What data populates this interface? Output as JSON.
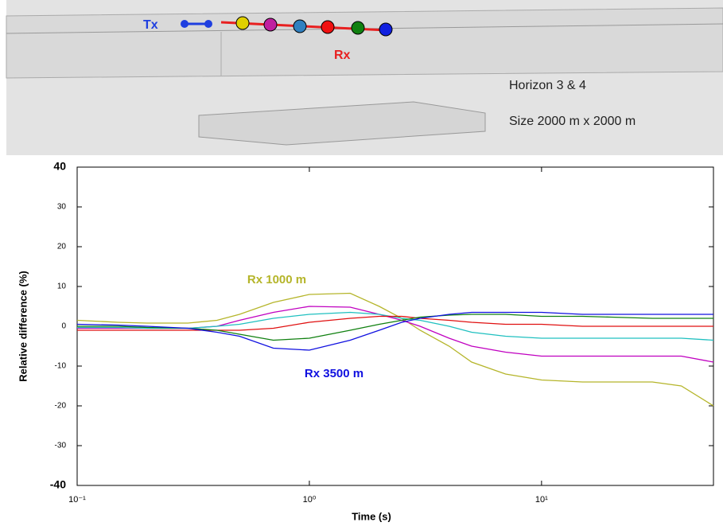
{
  "figure": {
    "labels": {
      "tx": "Tx",
      "rx": "Rx",
      "horizon": "Horizon 3 & 4",
      "size": "Size 2000 m x 2000 m"
    }
  },
  "chart_data": {
    "type": "line",
    "x_label": "Time (s)",
    "y_label": "Relative difference (%)",
    "x": [
      0.1,
      0.15,
      0.2,
      0.3,
      0.4,
      0.5,
      0.7,
      1,
      1.5,
      2,
      2.5,
      3,
      4,
      5,
      7,
      10,
      15,
      20,
      30,
      40,
      55
    ],
    "series": [
      {
        "color": "#b5b52a",
        "values": [
          1.5,
          1,
          0.8,
          0.8,
          1.5,
          3,
          6,
          8,
          8.3,
          5,
          2,
          -1,
          -5,
          -9,
          -12,
          -13.5,
          -14,
          -14,
          -14,
          -15,
          -20
        ]
      },
      {
        "color": "#c000c0",
        "values": [
          -0.5,
          -0.5,
          -0.5,
          -0.5,
          0,
          1.5,
          3.5,
          5,
          4.8,
          3,
          1.5,
          0,
          -3,
          -5,
          -6.5,
          -7.5,
          -7.5,
          -7.5,
          -7.5,
          -7.5,
          -9
        ]
      },
      {
        "color": "#20c0c0",
        "values": [
          -0.3,
          -0.3,
          -0.5,
          -0.5,
          0,
          0.5,
          2,
          3,
          3.5,
          3,
          2,
          1.5,
          0,
          -1.5,
          -2.5,
          -3,
          -3,
          -3,
          -3,
          -3,
          -3.5
        ]
      },
      {
        "color": "#e01010",
        "values": [
          -1,
          -1,
          -1,
          -1,
          -1,
          -1,
          -0.5,
          1,
          2,
          2.5,
          2.5,
          2,
          1.5,
          1,
          0.5,
          0.5,
          0,
          0,
          0,
          0,
          0
        ]
      },
      {
        "color": "#108010",
        "values": [
          0,
          0,
          -0.3,
          -0.5,
          -1,
          -2,
          -3.5,
          -3,
          -1,
          0.5,
          1.5,
          2.3,
          2.8,
          3,
          3,
          2.5,
          2.5,
          2.3,
          2,
          2,
          2
        ]
      },
      {
        "color": "#1010e0",
        "values": [
          0.5,
          0.3,
          0,
          -0.5,
          -1.5,
          -2.5,
          -5.5,
          -6,
          -3.5,
          -1,
          1,
          2,
          3,
          3.5,
          3.5,
          3.5,
          3,
          3,
          3,
          3,
          3
        ]
      }
    ],
    "annotations": [
      {
        "text": "Rx 1000 m",
        "color": "#b5b52a"
      },
      {
        "text": "Rx 3500 m",
        "color": "#1010e0"
      }
    ],
    "xlog": true,
    "xlim": [
      0.1,
      55
    ],
    "xticks": [
      {
        "value": 0.1,
        "label": "10⁻¹"
      },
      {
        "value": 1,
        "label": "10⁰"
      },
      {
        "value": 10,
        "label": "10¹"
      }
    ],
    "ylim": [
      -40,
      40
    ],
    "yticks": [
      -40,
      -30,
      -20,
      -10,
      0,
      10,
      20,
      30,
      40
    ]
  }
}
